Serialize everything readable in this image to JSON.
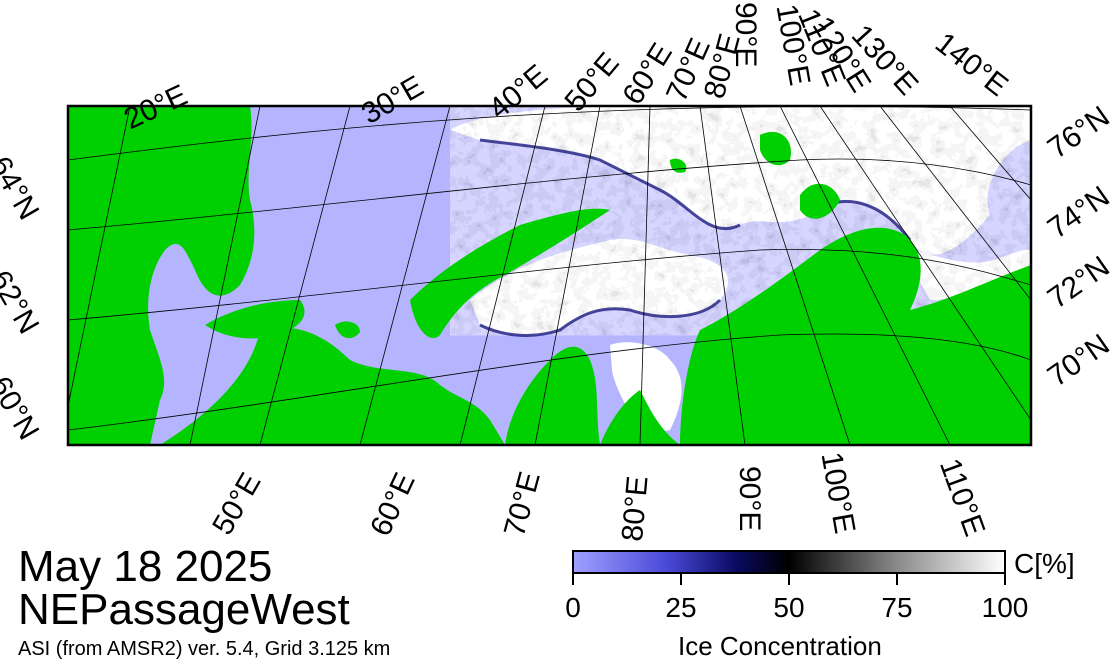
{
  "map": {
    "date": "May 18 2025",
    "region": "NEPassageWest",
    "subtitle": "ASI (from AMSR2) ver. 5.4,  Grid 3.125 km",
    "top_lon_labels": [
      "20°E",
      "30°E",
      "40°E",
      "50°E",
      "60°E",
      "70°E",
      "80°E",
      "90°E",
      "100°E",
      "110°E",
      "120°E",
      "130°E",
      "140°E"
    ],
    "bottom_lon_labels": [
      "50°E",
      "60°E",
      "70°E",
      "80°E",
      "90°E",
      "100°E",
      "110°E"
    ],
    "left_lat_labels": [
      "64°N",
      "62°N",
      "60°N"
    ],
    "right_lat_labels": [
      "76°N",
      "74°N",
      "72°N",
      "70°N"
    ],
    "colors": {
      "land": "#00d000",
      "open_water": "#b4b4ff",
      "ice_high": "#ffffff",
      "ice_mid": "#000000",
      "frame": "#000000"
    }
  },
  "colorbar": {
    "unit": "C[%]",
    "title": "Ice Concentration",
    "ticks": [
      "0",
      "25",
      "50",
      "75",
      "100"
    ],
    "min": 0,
    "max": 100
  }
}
